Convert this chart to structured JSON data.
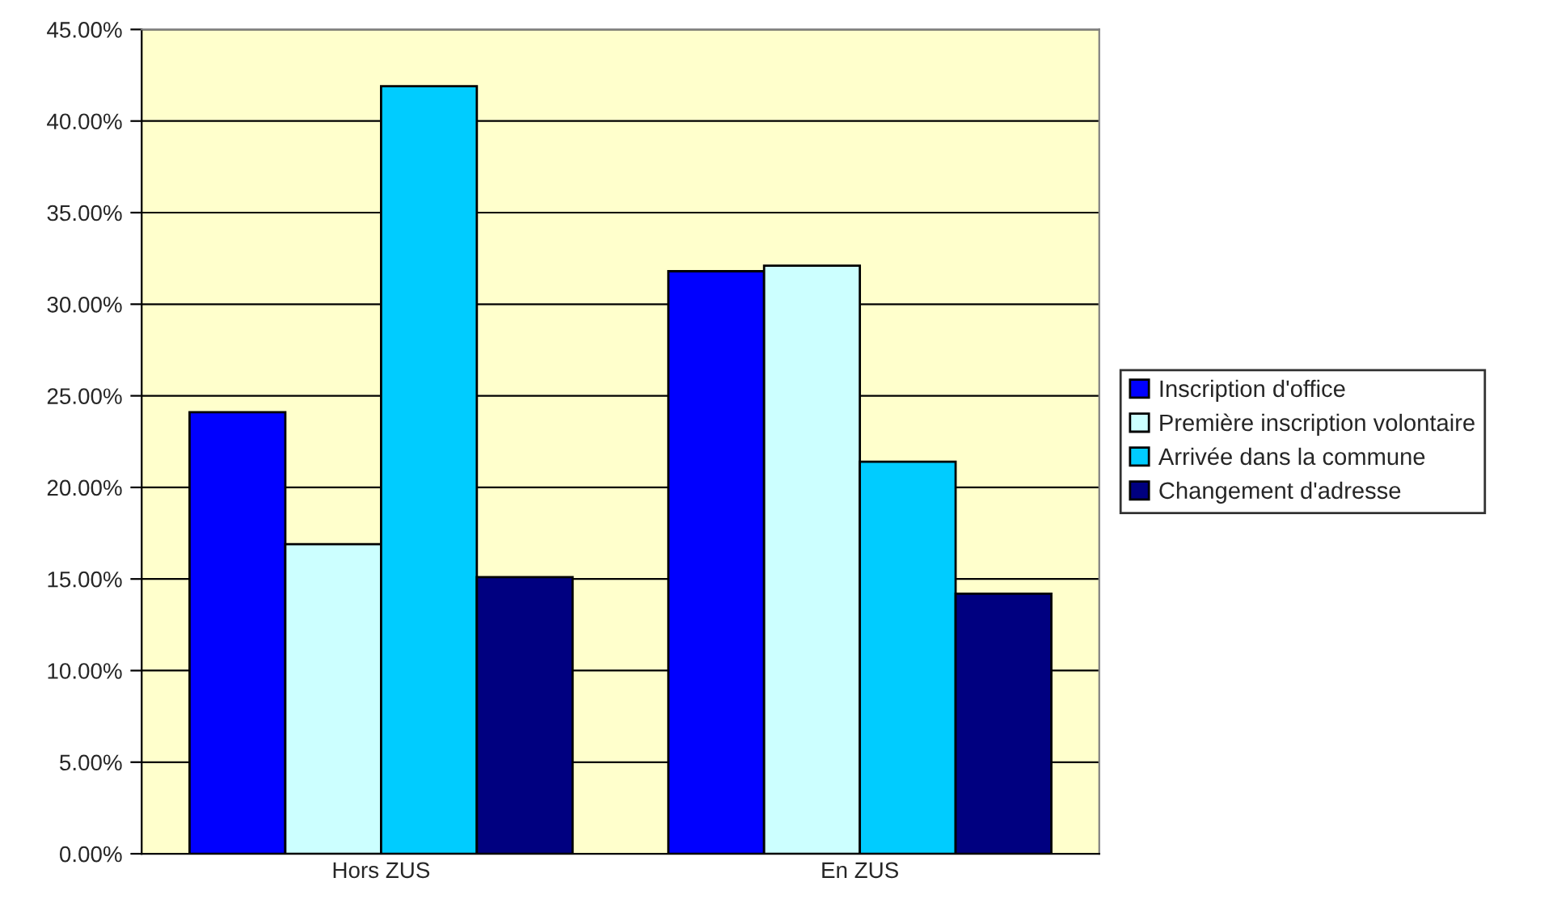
{
  "chart_data": {
    "type": "bar",
    "categories": [
      "Hors ZUS",
      "En ZUS"
    ],
    "series": [
      {
        "name": "Inscription d'office",
        "color": "#0000ff",
        "values": [
          24.1,
          31.8
        ]
      },
      {
        "name": "Première inscription volontaire",
        "color": "#ccffff",
        "values": [
          16.9,
          32.1
        ]
      },
      {
        "name": "Arrivée dans la commune",
        "color": "#00ccff",
        "values": [
          41.9,
          21.4
        ]
      },
      {
        "name": "Changement d'adresse",
        "color": "#000080",
        "values": [
          15.1,
          14.2
        ]
      }
    ],
    "ylim": [
      0,
      45
    ],
    "yticks": [
      {
        "value": 0,
        "label": "0.00%"
      },
      {
        "value": 5,
        "label": "5.00%"
      },
      {
        "value": 10,
        "label": "10.00%"
      },
      {
        "value": 15,
        "label": "15.00%"
      },
      {
        "value": 20,
        "label": "20.00%"
      },
      {
        "value": 25,
        "label": "25.00%"
      },
      {
        "value": 30,
        "label": "30.00%"
      },
      {
        "value": 35,
        "label": "35.00%"
      },
      {
        "value": 40,
        "label": "40.00%"
      },
      {
        "value": 45,
        "label": "45.00%"
      }
    ],
    "grid": "y",
    "legend": "right"
  }
}
